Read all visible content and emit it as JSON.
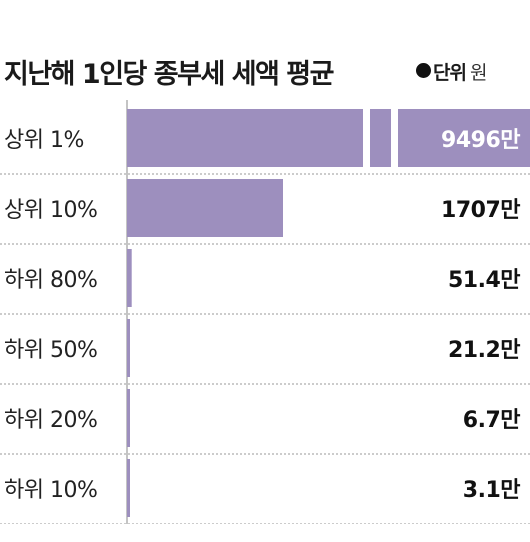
{
  "header": {
    "title": "지난해 1인당 종부세 세액 평균",
    "unit_label": "단위",
    "unit_value": "원"
  },
  "chart_data": {
    "type": "bar",
    "orientation": "horizontal",
    "title": "지난해 1인당 종부세 세액 평균",
    "unit": "원",
    "categories": [
      "상위 1%",
      "상위 10%",
      "하위 80%",
      "하위 50%",
      "하위 20%",
      "하위 10%"
    ],
    "values": [
      94960000,
      17070000,
      514000,
      212000,
      67000,
      31000
    ],
    "value_labels": [
      "9496만",
      "1707만",
      "51.4만",
      "21.2만",
      "6.7만",
      "3.1만"
    ],
    "axis_break": true,
    "bar_color": "#9d8fbe",
    "grid": false,
    "legend": "none"
  }
}
